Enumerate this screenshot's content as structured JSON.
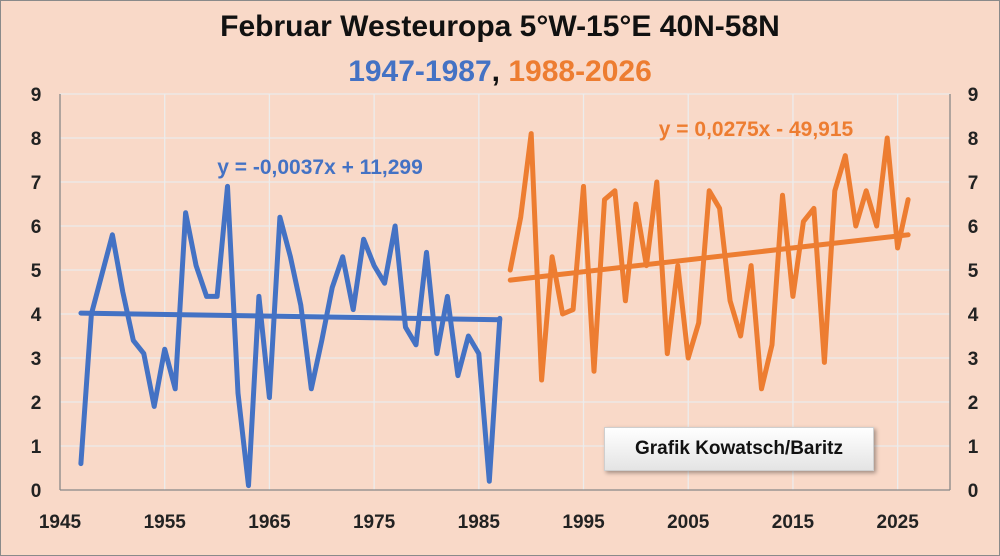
{
  "title": "Februar Westeuropa 5°W-15°E 40N-58N",
  "subtitle": {
    "part1": "1947-1987",
    "sep": ", ",
    "part2": "1988-2026"
  },
  "colors": {
    "series1": "#4472c4",
    "series2": "#ed7d31",
    "background": "#f9d9c8",
    "grid": "#ececec",
    "axis": "#888888"
  },
  "credit": "Grafik Kowatsch/Baritz",
  "chart_data": {
    "type": "line",
    "title": "Februar Westeuropa 5°W-15°E 40N-58N",
    "xlabel": "",
    "ylabel": "",
    "xlim": [
      1945,
      2030
    ],
    "ylim": [
      0,
      9
    ],
    "x_ticks": [
      "1945",
      "1955",
      "1965",
      "1975",
      "1985",
      "1995",
      "2005",
      "2015",
      "2025"
    ],
    "y_ticks": [
      "0",
      "1",
      "2",
      "3",
      "4",
      "5",
      "6",
      "7",
      "8",
      "9"
    ],
    "grid": true,
    "series": [
      {
        "name": "1947-1987",
        "color": "#4472c4",
        "x": [
          1947,
          1948,
          1949,
          1950,
          1951,
          1952,
          1953,
          1954,
          1955,
          1956,
          1957,
          1958,
          1959,
          1960,
          1961,
          1962,
          1963,
          1964,
          1965,
          1966,
          1967,
          1968,
          1969,
          1970,
          1971,
          1972,
          1973,
          1974,
          1975,
          1976,
          1977,
          1978,
          1979,
          1980,
          1981,
          1982,
          1983,
          1984,
          1985,
          1986,
          1987
        ],
        "y": [
          0.6,
          4.0,
          4.9,
          5.8,
          4.5,
          3.4,
          3.1,
          1.9,
          3.2,
          2.3,
          6.3,
          5.1,
          4.4,
          4.4,
          6.9,
          2.2,
          0.1,
          4.4,
          2.1,
          6.2,
          5.3,
          4.2,
          2.3,
          3.4,
          4.6,
          5.3,
          4.1,
          5.7,
          5.1,
          4.7,
          6.0,
          3.7,
          3.3,
          5.4,
          3.1,
          4.4,
          2.6,
          3.5,
          3.1,
          0.2,
          3.9
        ],
        "trend": {
          "equation": "y = -0,0037x + 11,299",
          "start": [
            1947,
            4.02
          ],
          "end": [
            1987,
            3.87
          ]
        }
      },
      {
        "name": "1988-2026",
        "color": "#ed7d31",
        "x": [
          1988,
          1989,
          1990,
          1991,
          1992,
          1993,
          1994,
          1995,
          1996,
          1997,
          1998,
          1999,
          2000,
          2001,
          2002,
          2003,
          2004,
          2005,
          2006,
          2007,
          2008,
          2009,
          2010,
          2011,
          2012,
          2013,
          2014,
          2015,
          2016,
          2017,
          2018,
          2019,
          2020,
          2021,
          2022,
          2023,
          2024,
          2025,
          2026
        ],
        "y": [
          5.0,
          6.2,
          8.1,
          2.5,
          5.3,
          4.0,
          4.1,
          6.9,
          2.7,
          6.6,
          6.8,
          4.3,
          6.5,
          5.1,
          7.0,
          3.1,
          5.1,
          3.0,
          3.8,
          6.8,
          6.4,
          4.3,
          3.5,
          5.1,
          2.3,
          3.3,
          6.7,
          4.4,
          6.1,
          6.4,
          2.9,
          6.8,
          7.6,
          6.0,
          6.8,
          6.0,
          8.0,
          5.5,
          6.6
        ],
        "trend": {
          "equation": "y = 0,0275x - 49,915",
          "start": [
            1988,
            4.77
          ],
          "end": [
            2026,
            5.8
          ]
        }
      }
    ]
  }
}
